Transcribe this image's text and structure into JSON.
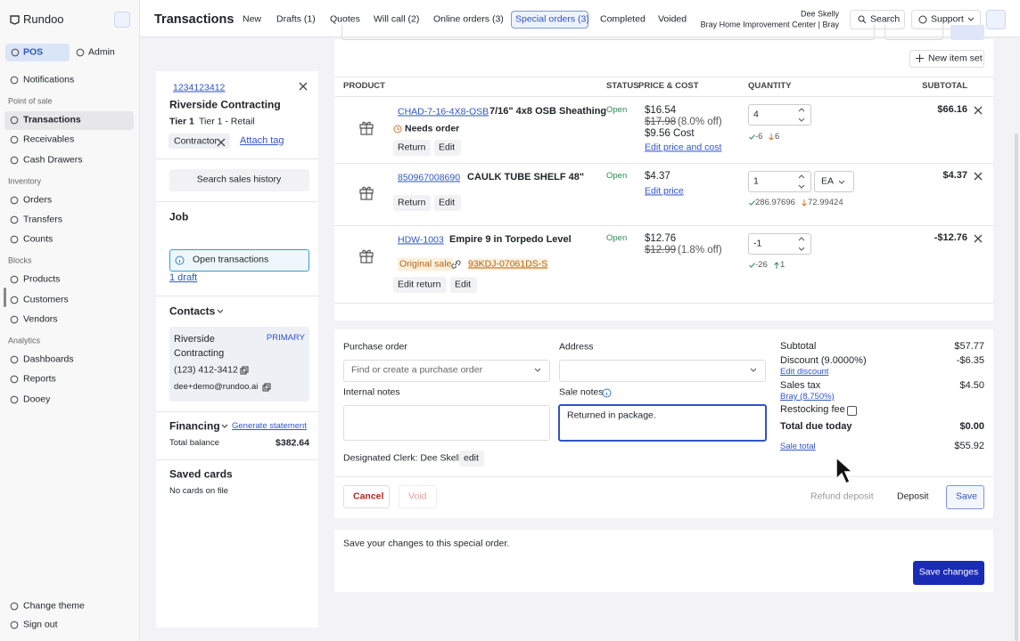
{
  "sidebar": {
    "brand": "Rundoo",
    "tabs": [
      "POS",
      "Admin"
    ],
    "notifications": "Notifications",
    "sections": [
      {
        "title": "Point of sale",
        "items": [
          "Transactions",
          "Receivables",
          "Cash Drawers"
        ]
      },
      {
        "title": "Inventory",
        "items": [
          "Orders",
          "Transfers",
          "Counts"
        ]
      },
      {
        "title": "Blocks",
        "items": [
          "Products",
          "Customers",
          "Vendors"
        ]
      },
      {
        "title": "Analytics",
        "items": [
          "Dashboards",
          "Reports",
          "Dooey"
        ]
      }
    ],
    "footer": [
      "Change theme",
      "Sign out"
    ]
  },
  "header": {
    "title": "Transactions",
    "tabs": [
      "New",
      "Drafts (1)",
      "Quotes",
      "Will call (2)",
      "Online orders (3)",
      "Special orders (3)",
      "Completed",
      "Voided"
    ],
    "user": {
      "name": "Dee Skelly",
      "store": "Bray Home Improvement Center | Bray"
    },
    "buttons": [
      "Search",
      "Support"
    ]
  },
  "customer": {
    "id": "1234123412",
    "name": "Riverside Contracting",
    "tier": "Tier 1",
    "tier_name": "Tier 1 - Retail",
    "tag": "Contractor",
    "attach_tag": "Attach tag",
    "search_history": "Search sales history",
    "job": "Job",
    "open_transactions": "Open transactions",
    "drafts": "1 draft",
    "contacts": {
      "title": "Contacts",
      "name": "Riverside Contracting",
      "badge": "PRIMARY",
      "phone": "(123) 412-3412",
      "email": "dee+demo@rundoo.ai"
    },
    "financing": {
      "title": "Financing",
      "statement": "Generate statement",
      "balance_label": "Total balance",
      "balance": "$382.64"
    },
    "saved_cards": {
      "title": "Saved cards",
      "empty": "No cards on file"
    }
  },
  "items": {
    "new_item_set": "New item set",
    "columns": [
      "PRODUCT",
      "STATUS",
      "PRICE & COST",
      "QUANTITY",
      "SUBTOTAL"
    ],
    "rows": [
      {
        "sku": "CHAD-7-16-4X8-OSB",
        "name": "7/16\" 4x8 OSB Sheathing",
        "note": "Needs order",
        "status": "Open",
        "price": "$16.54",
        "original": "$17.98",
        "discount": "(8.0% off)",
        "cost": "$9.56 Cost",
        "price_link": "Edit price and cost",
        "quantity": "4",
        "stock": [
          "-6",
          "6"
        ],
        "actions": [
          "Return",
          "Edit"
        ],
        "subtotal": "$66.16"
      },
      {
        "sku": "850967008690",
        "name": "CAULK TUBE SHELF 48\"",
        "status": "Open",
        "price": "$4.37",
        "price_link": "Edit price",
        "quantity": "1",
        "unit": "EA",
        "stock": [
          "286.97696",
          "72.99424"
        ],
        "actions": [
          "Return",
          "Edit"
        ],
        "subtotal": "$4.37"
      },
      {
        "sku": "HDW-1003",
        "name": "Empire 9 in Torpedo Level",
        "original_sale": "Original sale",
        "original_sale_id": "93KDJ-07061DS-S",
        "status": "Open",
        "price": "$12.76",
        "original": "$12.99",
        "discount": "(1.8% off)",
        "quantity": "-1",
        "stock": [
          "-26",
          "1"
        ],
        "actions": [
          "Edit return",
          "Edit"
        ],
        "subtotal": "-$12.76"
      }
    ]
  },
  "form": {
    "purchase_order": "Purchase order",
    "purchase_placeholder": "Find or create a purchase order",
    "address": "Address",
    "internal_notes": "Internal notes",
    "sale_notes": "Sale notes",
    "sale_notes_value": "Returned in package.",
    "clerk": "Designated Clerk: Dee Skelly",
    "clerk_edit": "edit"
  },
  "totals": {
    "subtotal_label": "Subtotal",
    "subtotal": "$57.77",
    "discount_label": "Discount (9.0000%)",
    "discount": "-$6.35",
    "edit_discount": "Edit discount",
    "tax_label": "Sales tax",
    "tax": "$4.50",
    "tax_rate": "Bray (8.750%)",
    "restocking": "Restocking fee",
    "due_label": "Total due today",
    "due": "$0.00",
    "sale_total_label": "Sale total",
    "sale_total": "$55.92"
  },
  "actions": {
    "cancel": "Cancel",
    "void": "Void",
    "refund_deposit": "Refund deposit",
    "deposit": "Deposit",
    "save": "Save"
  },
  "footer": {
    "message": "Save your changes to this special order.",
    "save_changes": "Save changes"
  }
}
